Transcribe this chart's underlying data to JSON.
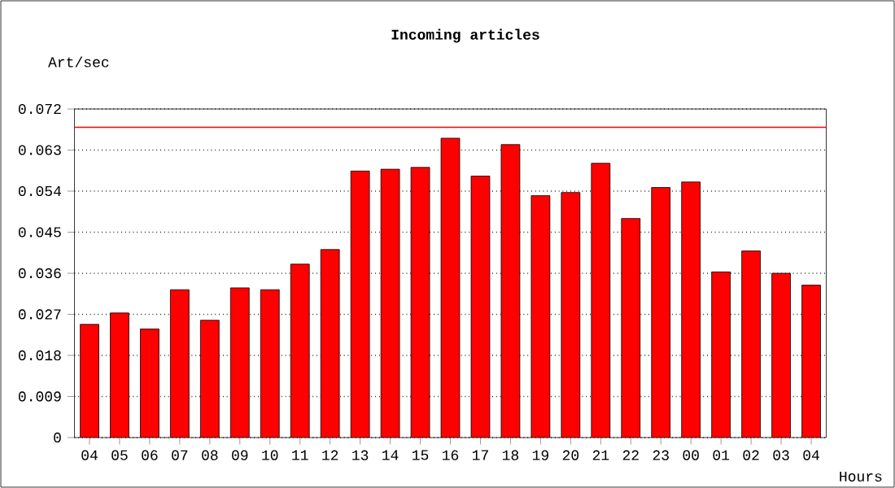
{
  "chart_data": {
    "type": "bar",
    "title": "Incoming articles",
    "ylabel": "Art/sec",
    "xlabel": "Hours",
    "categories": [
      "04",
      "05",
      "06",
      "07",
      "08",
      "09",
      "10",
      "11",
      "12",
      "13",
      "14",
      "15",
      "16",
      "17",
      "18",
      "19",
      "20",
      "21",
      "22",
      "23",
      "00",
      "01",
      "02",
      "03",
      "04"
    ],
    "values": [
      0.0248,
      0.0273,
      0.0238,
      0.0324,
      0.0257,
      0.0328,
      0.0324,
      0.038,
      0.0412,
      0.0584,
      0.0588,
      0.0592,
      0.0656,
      0.0573,
      0.0642,
      0.053,
      0.0537,
      0.0601,
      0.048,
      0.0548,
      0.056,
      0.0363,
      0.0409,
      0.036,
      0.0334
    ],
    "color": "#ff0000",
    "ylim": [
      0,
      0.072
    ],
    "yticks": [
      0,
      0.009,
      0.018,
      0.027,
      0.036,
      0.045,
      0.054,
      0.063,
      0.072
    ],
    "grid": "y",
    "ref_lines": [
      {
        "axis": "y",
        "value": 0.068,
        "color": "#ff0000"
      }
    ]
  }
}
